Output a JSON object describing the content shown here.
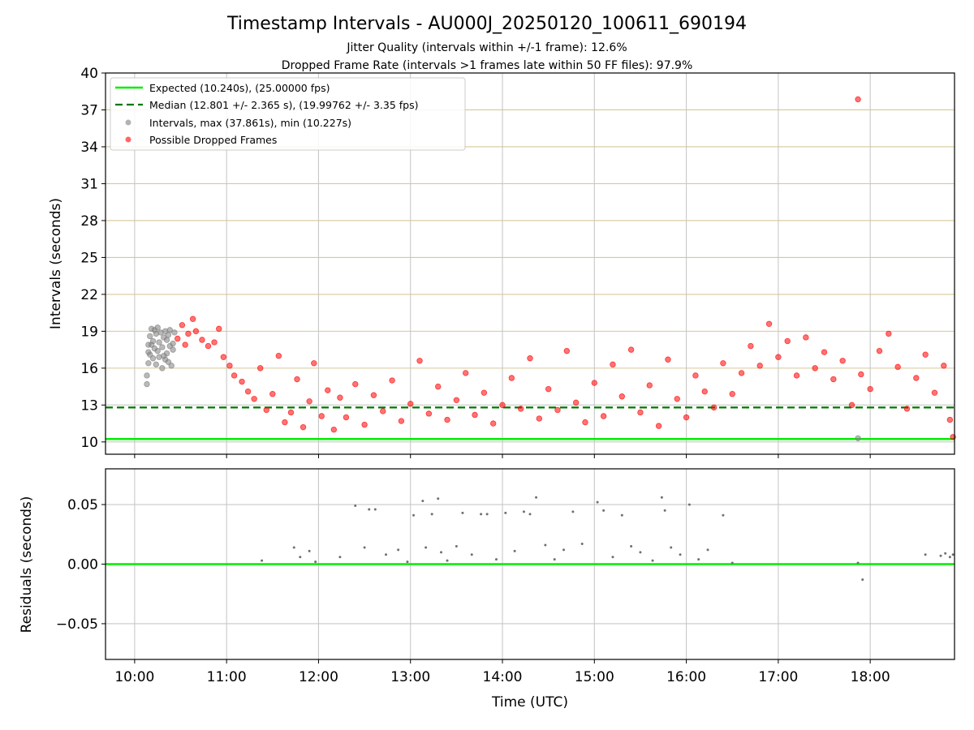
{
  "figure": {
    "title": "Timestamp Intervals - AU000J_20250120_100611_690194",
    "subtitle_1": "Jitter Quality (intervals within +/-1 frame): 12.6%",
    "subtitle_2": "Dropped Frame Rate (intervals >1 frames late within 50 FF files): 97.9%"
  },
  "colors": {
    "expected": "#00ee00",
    "median": "#007700",
    "intervals": "#808080",
    "dropped": "#ff0000",
    "hgrid_top": "#d8c896",
    "vgrid": "#c8c8c8",
    "residual_points": "#707070"
  },
  "chart_data": [
    {
      "type": "scatter",
      "panel": "intervals",
      "ylabel": "Intervals (seconds)",
      "xlabel": "",
      "ylim": [
        9,
        40
      ],
      "xlim": [
        "09:41",
        "18:55"
      ],
      "y_ticks": [
        "10",
        "13",
        "16",
        "19",
        "22",
        "25",
        "28",
        "31",
        "34",
        "37",
        "40"
      ],
      "x_ticks": [
        "10:00",
        "11:00",
        "12:00",
        "13:00",
        "14:00",
        "15:00",
        "16:00",
        "17:00",
        "18:00"
      ],
      "grid": true,
      "legend_position": "top-left",
      "reference_lines": [
        {
          "name": "Expected (10.240s), (25.00000 fps)",
          "y": 10.24,
          "style": "solid",
          "color": "#00ee00"
        },
        {
          "name": "Median (12.801 +/- 2.365 s), (19.99762 +/- 3.35 fps)",
          "y": 12.801,
          "style": "dashed",
          "color": "#007700"
        }
      ],
      "series": [
        {
          "name": "Intervals, max (37.861s), min (10.227s)",
          "color": "#808080",
          "points": [
            [
              "10:08",
              14.7
            ],
            [
              "10:08",
              15.4
            ],
            [
              "10:09",
              16.4
            ],
            [
              "10:09",
              17.3
            ],
            [
              "10:09",
              17.9
            ],
            [
              "10:10",
              18.6
            ],
            [
              "10:10",
              17.1
            ],
            [
              "10:11",
              19.2
            ],
            [
              "10:11",
              17.9
            ],
            [
              "10:12",
              16.8
            ],
            [
              "10:12",
              18.2
            ],
            [
              "10:13",
              19.1
            ],
            [
              "10:13",
              17.6
            ],
            [
              "10:14",
              18.8
            ],
            [
              "10:14",
              16.3
            ],
            [
              "10:15",
              17.4
            ],
            [
              "10:15",
              19.3
            ],
            [
              "10:16",
              18.1
            ],
            [
              "10:16",
              16.9
            ],
            [
              "10:17",
              18.9
            ],
            [
              "10:18",
              17.7
            ],
            [
              "10:18",
              16.0
            ],
            [
              "10:19",
              18.5
            ],
            [
              "10:19",
              17.0
            ],
            [
              "10:20",
              19.0
            ],
            [
              "10:20",
              16.7
            ],
            [
              "10:21",
              18.3
            ],
            [
              "10:21",
              17.2
            ],
            [
              "10:22",
              16.5
            ],
            [
              "10:22",
              18.7
            ],
            [
              "10:23",
              17.8
            ],
            [
              "10:23",
              19.1
            ],
            [
              "10:24",
              16.2
            ],
            [
              "10:25",
              18.0
            ],
            [
              "10:25",
              17.5
            ],
            [
              "10:26",
              18.9
            ],
            [
              "17:52",
              10.3
            ]
          ]
        },
        {
          "name": "Possible Dropped Frames",
          "color": "#ff0000",
          "points": [
            [
              "17:52",
              37.861
            ],
            [
              "10:28",
              18.4
            ],
            [
              "10:31",
              19.5
            ],
            [
              "10:33",
              17.9
            ],
            [
              "10:35",
              18.8
            ],
            [
              "10:38",
              20.0
            ],
            [
              "10:40",
              19.0
            ],
            [
              "10:44",
              18.3
            ],
            [
              "10:48",
              17.8
            ],
            [
              "10:52",
              18.1
            ],
            [
              "10:55",
              19.2
            ],
            [
              "10:58",
              16.9
            ],
            [
              "11:02",
              16.2
            ],
            [
              "11:05",
              15.4
            ],
            [
              "11:10",
              14.9
            ],
            [
              "11:14",
              14.1
            ],
            [
              "11:18",
              13.5
            ],
            [
              "11:22",
              16.0
            ],
            [
              "11:26",
              12.6
            ],
            [
              "11:30",
              13.9
            ],
            [
              "11:34",
              17.0
            ],
            [
              "11:38",
              11.6
            ],
            [
              "11:42",
              12.4
            ],
            [
              "11:46",
              15.1
            ],
            [
              "11:50",
              11.2
            ],
            [
              "11:54",
              13.3
            ],
            [
              "11:57",
              16.4
            ],
            [
              "12:02",
              12.1
            ],
            [
              "12:06",
              14.2
            ],
            [
              "12:10",
              11.0
            ],
            [
              "12:14",
              13.6
            ],
            [
              "12:18",
              12.0
            ],
            [
              "12:24",
              14.7
            ],
            [
              "12:30",
              11.4
            ],
            [
              "12:36",
              13.8
            ],
            [
              "12:42",
              12.5
            ],
            [
              "12:48",
              15.0
            ],
            [
              "12:54",
              11.7
            ],
            [
              "13:00",
              13.1
            ],
            [
              "13:06",
              16.6
            ],
            [
              "13:12",
              12.3
            ],
            [
              "13:18",
              14.5
            ],
            [
              "13:24",
              11.8
            ],
            [
              "13:30",
              13.4
            ],
            [
              "13:36",
              15.6
            ],
            [
              "13:42",
              12.2
            ],
            [
              "13:48",
              14.0
            ],
            [
              "13:54",
              11.5
            ],
            [
              "14:00",
              13.0
            ],
            [
              "14:06",
              15.2
            ],
            [
              "14:12",
              12.7
            ],
            [
              "14:18",
              16.8
            ],
            [
              "14:24",
              11.9
            ],
            [
              "14:30",
              14.3
            ],
            [
              "14:36",
              12.6
            ],
            [
              "14:42",
              17.4
            ],
            [
              "14:48",
              13.2
            ],
            [
              "14:54",
              11.6
            ],
            [
              "15:00",
              14.8
            ],
            [
              "15:06",
              12.1
            ],
            [
              "15:12",
              16.3
            ],
            [
              "15:18",
              13.7
            ],
            [
              "15:24",
              17.5
            ],
            [
              "15:30",
              12.4
            ],
            [
              "15:36",
              14.6
            ],
            [
              "15:42",
              11.3
            ],
            [
              "15:48",
              16.7
            ],
            [
              "15:54",
              13.5
            ],
            [
              "16:00",
              12.0
            ],
            [
              "16:06",
              15.4
            ],
            [
              "16:12",
              14.1
            ],
            [
              "16:18",
              12.8
            ],
            [
              "16:24",
              16.4
            ],
            [
              "16:30",
              13.9
            ],
            [
              "16:36",
              15.6
            ],
            [
              "16:42",
              17.8
            ],
            [
              "16:48",
              16.2
            ],
            [
              "16:54",
              19.6
            ],
            [
              "17:00",
              16.9
            ],
            [
              "17:06",
              18.2
            ],
            [
              "17:12",
              15.4
            ],
            [
              "17:18",
              18.5
            ],
            [
              "17:24",
              16.0
            ],
            [
              "17:30",
              17.3
            ],
            [
              "17:36",
              15.1
            ],
            [
              "17:42",
              16.6
            ],
            [
              "17:48",
              13.0
            ],
            [
              "17:54",
              15.5
            ],
            [
              "18:00",
              14.3
            ],
            [
              "18:06",
              17.4
            ],
            [
              "18:12",
              18.8
            ],
            [
              "18:18",
              16.1
            ],
            [
              "18:24",
              12.7
            ],
            [
              "18:30",
              15.2
            ],
            [
              "18:36",
              17.1
            ],
            [
              "18:42",
              14.0
            ],
            [
              "18:48",
              16.2
            ],
            [
              "18:52",
              11.8
            ],
            [
              "18:54",
              10.4
            ]
          ]
        }
      ]
    },
    {
      "type": "scatter",
      "panel": "residuals",
      "ylabel": "Residuals (seconds)",
      "xlabel": "Time (UTC)",
      "ylim": [
        -0.08,
        0.08
      ],
      "xlim": [
        "09:41",
        "18:55"
      ],
      "y_ticks": [
        "0.05",
        "0.00",
        "−0.05"
      ],
      "x_ticks": [
        "10:00",
        "11:00",
        "12:00",
        "13:00",
        "14:00",
        "15:00",
        "16:00",
        "17:00",
        "18:00"
      ],
      "grid": true,
      "reference_lines": [
        {
          "name": "zero",
          "y": 0.0,
          "style": "solid",
          "color": "#00ee00"
        }
      ],
      "series": [
        {
          "name": "",
          "color": "#707070",
          "points": [
            [
              "11:23",
              0.003
            ],
            [
              "11:44",
              0.014
            ],
            [
              "11:48",
              0.006
            ],
            [
              "11:54",
              0.011
            ],
            [
              "11:58",
              0.002
            ],
            [
              "12:14",
              0.006
            ],
            [
              "12:24",
              0.049
            ],
            [
              "12:30",
              0.014
            ],
            [
              "12:33",
              0.046
            ],
            [
              "12:37",
              0.046
            ],
            [
              "12:44",
              0.008
            ],
            [
              "12:52",
              0.012
            ],
            [
              "12:58",
              0.002
            ],
            [
              "13:02",
              0.041
            ],
            [
              "13:08",
              0.053
            ],
            [
              "13:10",
              0.014
            ],
            [
              "13:14",
              0.042
            ],
            [
              "13:18",
              0.055
            ],
            [
              "13:20",
              0.01
            ],
            [
              "13:24",
              0.003
            ],
            [
              "13:30",
              0.015
            ],
            [
              "13:34",
              0.043
            ],
            [
              "13:40",
              0.008
            ],
            [
              "13:46",
              0.042
            ],
            [
              "13:50",
              0.042
            ],
            [
              "13:56",
              0.004
            ],
            [
              "14:02",
              0.043
            ],
            [
              "14:08",
              0.011
            ],
            [
              "14:14",
              0.044
            ],
            [
              "14:18",
              0.042
            ],
            [
              "14:22",
              0.056
            ],
            [
              "14:28",
              0.016
            ],
            [
              "14:34",
              0.004
            ],
            [
              "14:40",
              0.012
            ],
            [
              "14:46",
              0.044
            ],
            [
              "14:52",
              0.017
            ],
            [
              "15:02",
              0.052
            ],
            [
              "15:06",
              0.045
            ],
            [
              "15:12",
              0.006
            ],
            [
              "15:18",
              0.041
            ],
            [
              "15:24",
              0.015
            ],
            [
              "15:30",
              0.01
            ],
            [
              "15:38",
              0.003
            ],
            [
              "15:44",
              0.056
            ],
            [
              "15:46",
              0.045
            ],
            [
              "15:50",
              0.014
            ],
            [
              "15:56",
              0.008
            ],
            [
              "16:02",
              0.05
            ],
            [
              "16:08",
              0.004
            ],
            [
              "16:14",
              0.012
            ],
            [
              "16:24",
              0.041
            ],
            [
              "16:30",
              0.001
            ],
            [
              "17:52",
              0.001
            ],
            [
              "17:55",
              -0.013
            ],
            [
              "18:36",
              0.008
            ],
            [
              "18:46",
              0.007
            ],
            [
              "18:49",
              0.009
            ],
            [
              "18:52",
              0.006
            ],
            [
              "18:54",
              0.008
            ]
          ]
        }
      ]
    }
  ]
}
